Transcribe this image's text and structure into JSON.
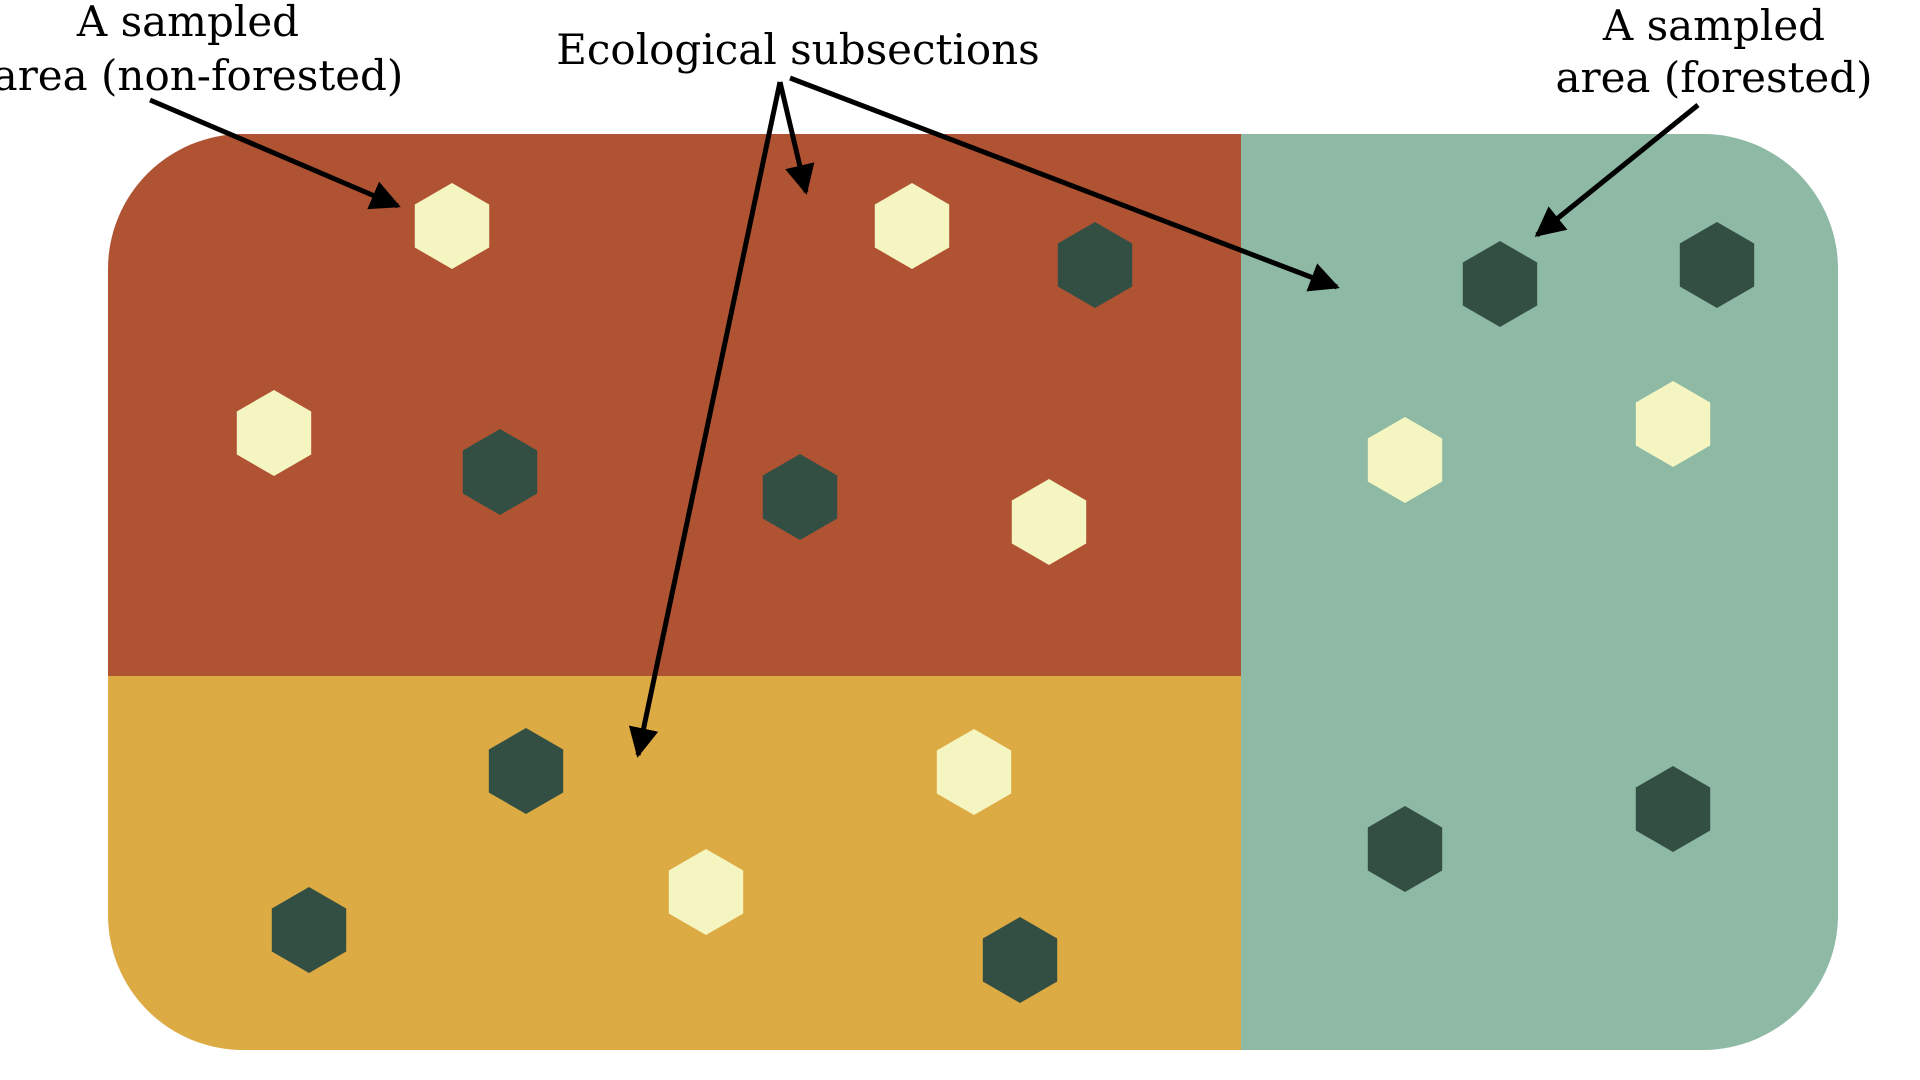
{
  "labels": {
    "non_forested": {
      "line1": "A sampled",
      "line2": "area (non-forested)"
    },
    "subsections": "Ecological subsections",
    "forested": {
      "line1": "A sampled",
      "line2": "area (forested)"
    }
  },
  "regions": [
    {
      "name": "subsection-top-left",
      "color": "#AF5333"
    },
    {
      "name": "subsection-bottom-left",
      "color": "#DDAB44"
    },
    {
      "name": "subsection-right",
      "color": "#8EB9A4"
    }
  ],
  "colors": {
    "forested_hexagon": "#334F44",
    "non_forested_hexagon": "#F5F5C1",
    "arrow": "#000000"
  },
  "sampled_areas": [
    {
      "type": "non-forested",
      "region": "subsection-top-left"
    },
    {
      "type": "non-forested",
      "region": "subsection-top-left"
    },
    {
      "type": "forested",
      "region": "subsection-top-left"
    },
    {
      "type": "non-forested",
      "region": "subsection-top-left"
    },
    {
      "type": "forested",
      "region": "subsection-top-left"
    },
    {
      "type": "forested",
      "region": "subsection-top-left"
    },
    {
      "type": "non-forested",
      "region": "subsection-top-left"
    },
    {
      "type": "forested",
      "region": "subsection-bottom-left"
    },
    {
      "type": "non-forested",
      "region": "subsection-bottom-left"
    },
    {
      "type": "non-forested",
      "region": "subsection-bottom-left"
    },
    {
      "type": "forested",
      "region": "subsection-bottom-left"
    },
    {
      "type": "forested",
      "region": "subsection-bottom-left"
    },
    {
      "type": "forested",
      "region": "subsection-right"
    },
    {
      "type": "forested",
      "region": "subsection-right"
    },
    {
      "type": "non-forested",
      "region": "subsection-right"
    },
    {
      "type": "non-forested",
      "region": "subsection-right"
    },
    {
      "type": "forested",
      "region": "subsection-right"
    },
    {
      "type": "forested",
      "region": "subsection-right"
    }
  ]
}
